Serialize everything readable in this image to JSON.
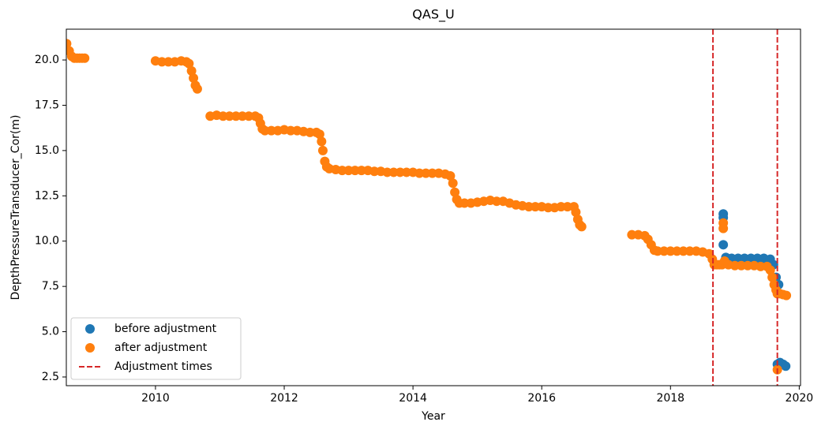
{
  "chart_data": {
    "type": "scatter",
    "title": "QAS_U",
    "x_label": "Year",
    "y_label": "DepthPressureTransducer_Cor(m)",
    "xlim": [
      2008.615,
      2020.02
    ],
    "xticks": [
      2010,
      2012,
      2014,
      2016,
      2018,
      2020
    ],
    "ylim": [
      2.02,
      21.7
    ],
    "yticks": [
      2.5,
      {
        "value": 5,
        "label": "5.0"
      },
      7.5,
      {
        "value": 10,
        "label": "10.0"
      },
      12.5,
      {
        "value": 15,
        "label": "15.0"
      },
      17.5,
      {
        "value": 20,
        "label": "20.0"
      }
    ],
    "legend": "lower left",
    "series": [
      {
        "name": "before adjustment",
        "color": "#1f77b4",
        "x": [
          2018.82,
          2018.82,
          2018.82,
          2018.86,
          2018.95,
          2019.05,
          2019.15,
          2019.25,
          2019.35,
          2019.45,
          2019.55,
          2019.6,
          2019.64,
          2019.68,
          2019.66,
          2019.7,
          2019.75,
          2019.79
        ],
        "values": [
          11.5,
          11.3,
          9.8,
          9.1,
          9.05,
          9.05,
          9.05,
          9.05,
          9.05,
          9.05,
          9.0,
          8.7,
          8.0,
          7.6,
          3.2,
          3.3,
          3.2,
          3.1
        ]
      },
      {
        "name": "after adjustment",
        "color": "#ff7f0e",
        "x": [
          2008.62,
          2008.66,
          2008.7,
          2008.74,
          2008.78,
          2008.82,
          2008.86,
          2008.9,
          2010.0,
          2010.1,
          2010.2,
          2010.3,
          2010.4,
          2010.48,
          2010.52,
          2010.56,
          2010.59,
          2010.62,
          2010.65,
          2010.85,
          2010.95,
          2011.05,
          2011.15,
          2011.25,
          2011.35,
          2011.45,
          2011.55,
          2011.6,
          2011.63,
          2011.66,
          2011.7,
          2011.8,
          2011.9,
          2012.0,
          2012.1,
          2012.2,
          2012.3,
          2012.4,
          2012.5,
          2012.55,
          2012.58,
          2012.6,
          2012.63,
          2012.66,
          2012.7,
          2012.8,
          2012.9,
          2013.0,
          2013.1,
          2013.2,
          2013.3,
          2013.4,
          2013.5,
          2013.6,
          2013.7,
          2013.8,
          2013.9,
          2014.0,
          2014.1,
          2014.2,
          2014.3,
          2014.4,
          2014.5,
          2014.58,
          2014.62,
          2014.65,
          2014.68,
          2014.72,
          2014.8,
          2014.9,
          2015.0,
          2015.1,
          2015.2,
          2015.3,
          2015.4,
          2015.5,
          2015.6,
          2015.7,
          2015.8,
          2015.9,
          2016.0,
          2016.1,
          2016.2,
          2016.3,
          2016.4,
          2016.5,
          2016.53,
          2016.56,
          2016.59,
          2016.62,
          2017.4,
          2017.5,
          2017.6,
          2017.65,
          2017.7,
          2017.75,
          2017.8,
          2017.9,
          2018.0,
          2018.1,
          2018.2,
          2018.3,
          2018.4,
          2018.5,
          2018.6,
          2018.65,
          2018.68,
          2018.72,
          2018.76,
          2018.8,
          2018.82,
          2018.82,
          2018.84,
          2018.9,
          2019.0,
          2019.1,
          2019.2,
          2019.3,
          2019.4,
          2019.5,
          2019.55,
          2019.58,
          2019.61,
          2019.64,
          2019.66,
          2019.7,
          2019.75,
          2019.8,
          2019.66
        ],
        "values": [
          20.9,
          20.5,
          20.2,
          20.1,
          20.1,
          20.1,
          20.1,
          20.1,
          19.95,
          19.9,
          19.9,
          19.9,
          19.95,
          19.9,
          19.8,
          19.4,
          19.0,
          18.6,
          18.4,
          16.9,
          16.95,
          16.9,
          16.9,
          16.9,
          16.9,
          16.9,
          16.9,
          16.8,
          16.5,
          16.2,
          16.1,
          16.1,
          16.1,
          16.15,
          16.1,
          16.1,
          16.05,
          16.0,
          16.0,
          15.9,
          15.5,
          15.0,
          14.4,
          14.1,
          14.0,
          13.95,
          13.9,
          13.9,
          13.9,
          13.9,
          13.9,
          13.85,
          13.85,
          13.8,
          13.8,
          13.8,
          13.8,
          13.8,
          13.75,
          13.75,
          13.75,
          13.75,
          13.7,
          13.6,
          13.2,
          12.7,
          12.3,
          12.1,
          12.1,
          12.1,
          12.15,
          12.2,
          12.25,
          12.2,
          12.2,
          12.1,
          12.0,
          11.95,
          11.9,
          11.9,
          11.9,
          11.85,
          11.85,
          11.9,
          11.9,
          11.9,
          11.6,
          11.2,
          10.9,
          10.8,
          10.35,
          10.35,
          10.3,
          10.1,
          9.8,
          9.5,
          9.45,
          9.45,
          9.45,
          9.45,
          9.45,
          9.45,
          9.45,
          9.4,
          9.3,
          9.0,
          8.7,
          8.7,
          8.7,
          8.7,
          11.0,
          10.7,
          8.9,
          8.7,
          8.65,
          8.65,
          8.65,
          8.65,
          8.6,
          8.6,
          8.4,
          8.0,
          7.6,
          7.3,
          7.1,
          7.1,
          7.05,
          7.0,
          2.9
        ]
      }
    ],
    "adjustment_times": {
      "name": "Adjustment times",
      "color": "#d62728",
      "x": [
        2018.66,
        2019.66
      ]
    }
  }
}
